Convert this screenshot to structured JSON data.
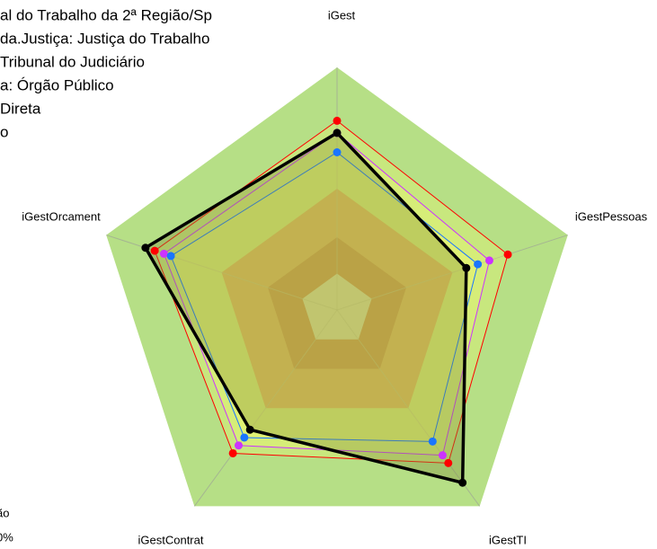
{
  "chart_data": {
    "type": "radar",
    "annotations": [
      "al do Trabalho da 2ª Região/Sp",
      "da.Justiça: Justiça do Trabalho",
      "Tribunal do Judiciário",
      "a: Órgão Público",
      "Direta",
      "o"
    ],
    "footer": [
      "ão",
      "0%"
    ],
    "categories": [
      "iGest",
      "iGestPessoas",
      "iGestTI",
      "iGestContrat",
      "iGestOrcament"
    ],
    "rlim": [
      0,
      1
    ],
    "bands": [
      {
        "value": 0.15,
        "color": "#c0c0c0"
      },
      {
        "value": 0.3,
        "color": "#a9412b"
      },
      {
        "value": 0.5,
        "color": "#c87a4e"
      },
      {
        "value": 1,
        "color": "#b6df86"
      }
    ],
    "series": [
      {
        "color": "#ff0000",
        "values": [
          0.78,
          0.74,
          0.78,
          0.73,
          0.79
        ]
      },
      {
        "color": "#cc33ff",
        "values": [
          0.73,
          0.66,
          0.74,
          0.69,
          0.75
        ]
      },
      {
        "color": "#1a75ff",
        "values": [
          0.65,
          0.61,
          0.67,
          0.65,
          0.72
        ]
      },
      {
        "color": "#000000",
        "values": [
          0.73,
          0.56,
          0.88,
          0.61,
          0.83
        ]
      }
    ]
  }
}
